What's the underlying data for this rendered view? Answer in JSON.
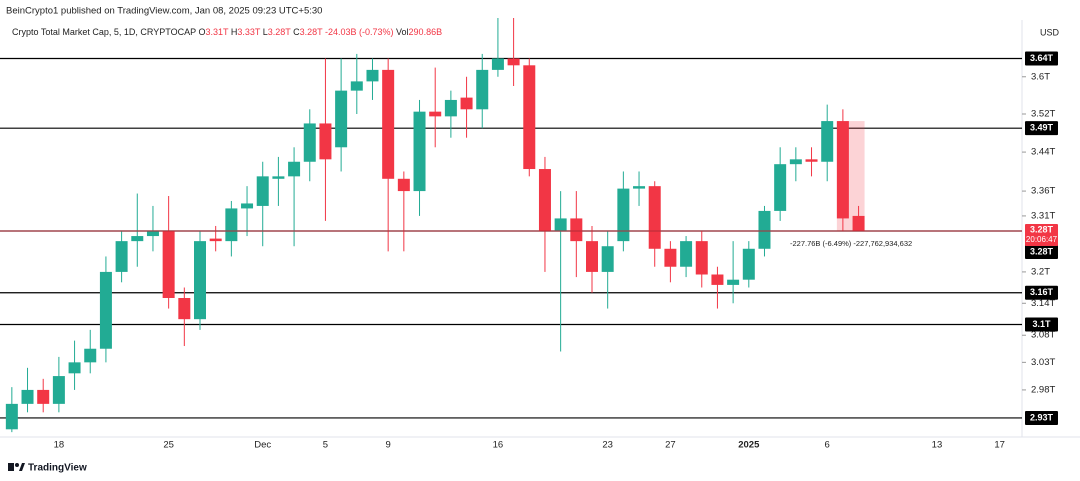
{
  "header": {
    "publisher": "BeinCrypto1 published on TradingView.com, Jan 08, 2025 09:23 UTC+5:30",
    "symbol": "Crypto Total Market Cap, 5, 1D, CRYPTOCAP",
    "ohlc_legend": [
      {
        "key": "O",
        "value": "3.31T"
      },
      {
        "key": "H",
        "value": "3.33T"
      },
      {
        "key": "L",
        "value": "3.28T"
      },
      {
        "key": "C",
        "value": "3.28T"
      }
    ],
    "change": "-24.03B (-0.73%)",
    "vol_key": "Vol",
    "vol": "290.86B",
    "currency": "USD"
  },
  "footer": {
    "brand": "TradingView"
  },
  "chart_data": {
    "type": "candlestick",
    "log_scale": true,
    "grid": false,
    "up_color": "#22ab94",
    "down_color": "#f23645",
    "categories": [
      null,
      null,
      null,
      "18",
      null,
      null,
      null,
      null,
      null,
      null,
      "25",
      null,
      null,
      null,
      null,
      null,
      "Dec",
      null,
      null,
      null,
      "5",
      null,
      null,
      null,
      "9",
      null,
      null,
      null,
      null,
      null,
      null,
      "16",
      null,
      null,
      null,
      null,
      null,
      null,
      "23",
      null,
      null,
      null,
      "27",
      null,
      null,
      null,
      null,
      "2025",
      null,
      null,
      null,
      null,
      "6",
      null,
      null,
      null,
      null,
      null,
      null,
      "13",
      null,
      null,
      null,
      "17",
      null
    ],
    "open": [
      2.91,
      2.955,
      2.98,
      2.955,
      3.01,
      3.03,
      3.055,
      3.2,
      3.26,
      3.27,
      3.28,
      3.15,
      3.11,
      3.265,
      3.26,
      3.325,
      3.33,
      3.385,
      3.39,
      3.42,
      3.5,
      3.45,
      3.57,
      3.59,
      3.615,
      3.385,
      3.36,
      3.525,
      3.515,
      3.555,
      3.53,
      3.615,
      3.64,
      3.625,
      3.405,
      3.28,
      3.305,
      3.26,
      3.2,
      3.26,
      3.365,
      3.37,
      3.245,
      3.21,
      3.26,
      3.195,
      3.175,
      3.185,
      3.245,
      3.32,
      3.415,
      3.425,
      3.42,
      3.505,
      3.31,
      null,
      null,
      null,
      null,
      null,
      null,
      null,
      null,
      null,
      null
    ],
    "high": [
      2.985,
      3.02,
      3.0,
      3.04,
      3.07,
      3.09,
      3.23,
      3.28,
      3.355,
      3.33,
      3.35,
      3.17,
      3.28,
      3.29,
      3.34,
      3.37,
      3.42,
      3.43,
      3.45,
      3.53,
      3.64,
      3.64,
      3.65,
      3.64,
      3.64,
      3.4,
      3.55,
      3.62,
      3.57,
      3.6,
      3.65,
      3.73,
      3.73,
      3.64,
      3.43,
      3.36,
      3.36,
      3.29,
      3.28,
      3.4,
      3.4,
      3.38,
      3.26,
      3.27,
      3.28,
      3.21,
      3.26,
      3.26,
      3.33,
      3.45,
      3.45,
      3.45,
      3.54,
      3.53,
      3.33,
      null,
      null,
      null,
      null,
      null,
      null,
      null,
      null,
      null,
      null
    ],
    "low": [
      2.905,
      2.94,
      2.94,
      2.94,
      2.98,
      3.01,
      3.03,
      3.18,
      3.21,
      3.24,
      3.13,
      3.06,
      3.09,
      3.24,
      3.23,
      3.27,
      3.25,
      3.33,
      3.25,
      3.38,
      3.3,
      3.4,
      3.52,
      3.55,
      3.24,
      3.24,
      3.31,
      3.45,
      3.47,
      3.47,
      3.49,
      3.6,
      3.58,
      3.39,
      3.2,
      3.05,
      3.19,
      3.16,
      3.13,
      3.24,
      3.33,
      3.21,
      3.18,
      3.19,
      3.17,
      3.13,
      3.14,
      3.17,
      3.23,
      3.3,
      3.38,
      3.39,
      3.38,
      3.28,
      3.28,
      null,
      null,
      null,
      null,
      null,
      null,
      null,
      null,
      null,
      null
    ],
    "close": [
      2.955,
      2.98,
      2.955,
      3.005,
      3.03,
      3.055,
      3.2,
      3.26,
      3.27,
      3.28,
      3.15,
      3.11,
      3.26,
      3.26,
      3.325,
      3.335,
      3.39,
      3.39,
      3.42,
      3.5,
      3.425,
      3.57,
      3.59,
      3.615,
      3.385,
      3.36,
      3.525,
      3.515,
      3.55,
      3.53,
      3.615,
      3.64,
      3.625,
      3.405,
      3.28,
      3.305,
      3.26,
      3.2,
      3.25,
      3.365,
      3.37,
      3.245,
      3.21,
      3.26,
      3.195,
      3.175,
      3.185,
      3.245,
      3.32,
      3.415,
      3.425,
      3.42,
      3.505,
      3.305,
      3.28,
      null,
      null,
      null,
      null,
      null,
      null,
      null,
      null,
      null,
      null
    ],
    "ylim": [
      2.9,
      3.73
    ],
    "yticks": [
      {
        "value": 3.6,
        "label": "3.6T"
      },
      {
        "value": 3.52,
        "label": "3.52T"
      },
      {
        "value": 3.44,
        "label": "3.44T"
      },
      {
        "value": 3.36,
        "label": "3.36T"
      },
      {
        "value": 3.31,
        "label": "3.31T"
      },
      {
        "value": 3.2,
        "label": "3.2T"
      },
      {
        "value": 3.14,
        "label": "3.14T"
      },
      {
        "value": 3.08,
        "label": "3.08T"
      },
      {
        "value": 3.03,
        "label": "3.03T"
      },
      {
        "value": 2.98,
        "label": "2.98T"
      }
    ],
    "levels": [
      {
        "value": 3.64,
        "label": "3.64T"
      },
      {
        "value": 3.49,
        "label": "3.49T"
      },
      {
        "value": 3.28,
        "label": "3.28T"
      },
      {
        "value": 3.16,
        "label": "3.16T"
      },
      {
        "value": 3.1,
        "label": "3.1T"
      },
      {
        "value": 2.93,
        "label": "2.93T"
      }
    ],
    "price_line": {
      "value": 3.28,
      "label": "3.28T",
      "countdown": "20:06:47"
    },
    "annotation": "-227.76B (-6.49%) -227,762,934,632"
  }
}
